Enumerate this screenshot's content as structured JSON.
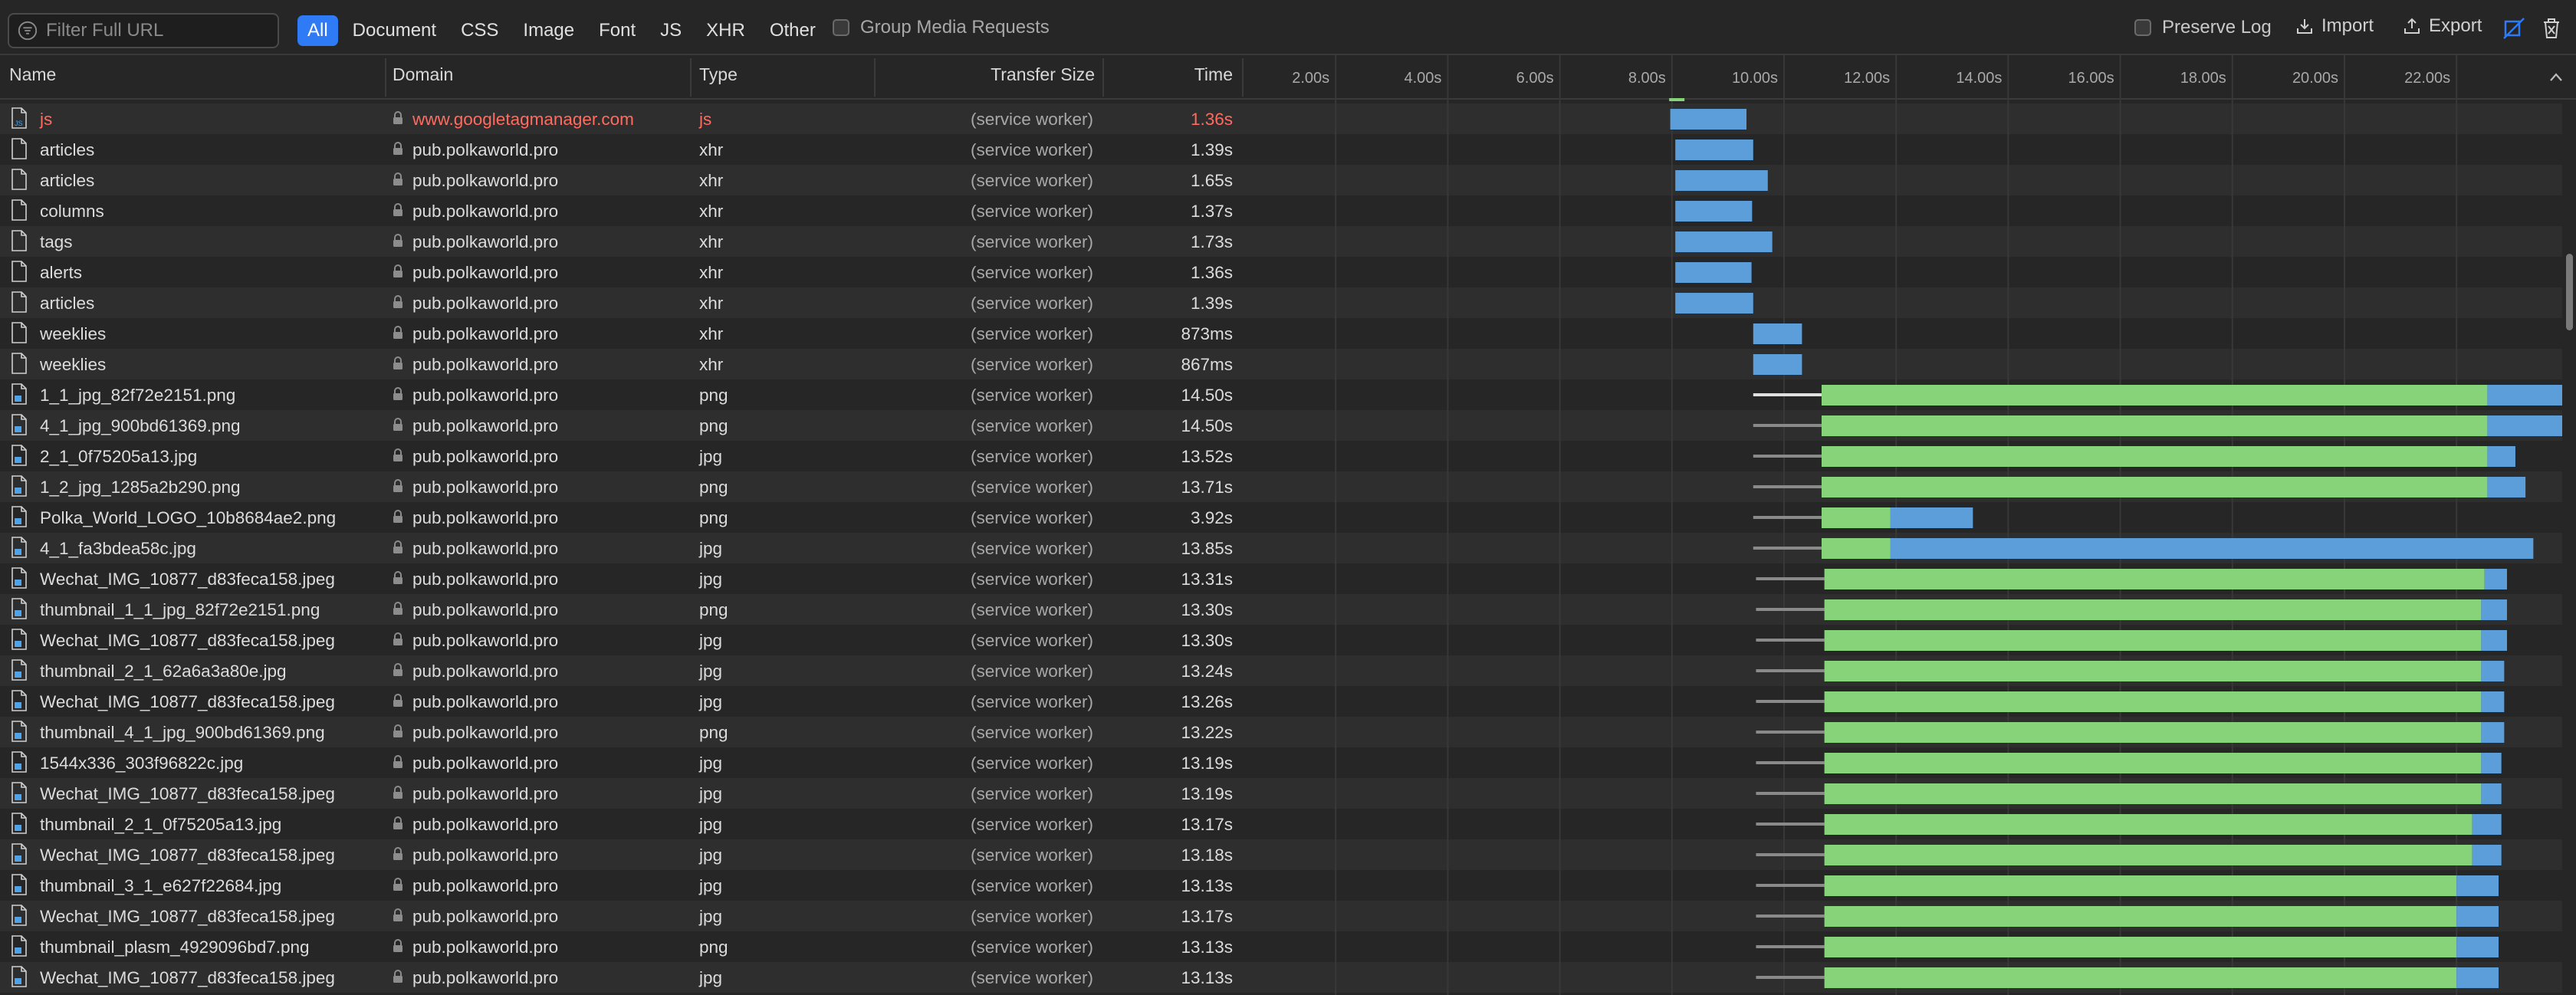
{
  "toolbar": {
    "filter_placeholder": "Filter Full URL",
    "types": [
      "All",
      "Document",
      "CSS",
      "Image",
      "Font",
      "JS",
      "XHR",
      "Other"
    ],
    "active_type": "All",
    "group_media": "Group Media Requests",
    "preserve_log": "Preserve Log",
    "import": "Import",
    "export": "Export",
    "accent": "#2f7bf5"
  },
  "columns": {
    "name": "Name",
    "domain": "Domain",
    "type": "Type",
    "transfer": "Transfer Size",
    "time": "Time"
  },
  "timeline_ticks": [
    "2.00s",
    "4.00s",
    "6.00s",
    "8.00s",
    "10.00s",
    "12.00s",
    "14.00s",
    "16.00s",
    "18.00s",
    "20.00s",
    "22.00s"
  ],
  "requests": [
    {
      "name": "js",
      "domain": "www.googletagmanager.com",
      "type": "js",
      "transfer": "(service worker)",
      "time": "1.36s",
      "error": true,
      "icon": "script-file-icon",
      "gray_start": null,
      "green_start": null,
      "blue_start": 7.97,
      "end": 9.33
    },
    {
      "name": "articles",
      "domain": "pub.polkaworld.pro",
      "type": "xhr",
      "transfer": "(service worker)",
      "time": "1.39s",
      "icon": "document-file-icon",
      "blue_start": 8.06,
      "end": 9.45
    },
    {
      "name": "articles",
      "domain": "pub.polkaworld.pro",
      "type": "xhr",
      "transfer": "(service worker)",
      "time": "1.65s",
      "icon": "document-file-icon",
      "blue_start": 8.06,
      "end": 9.71
    },
    {
      "name": "columns",
      "domain": "pub.polkaworld.pro",
      "type": "xhr",
      "transfer": "(service worker)",
      "time": "1.37s",
      "icon": "document-file-icon",
      "blue_start": 8.06,
      "end": 9.43
    },
    {
      "name": "tags",
      "domain": "pub.polkaworld.pro",
      "type": "xhr",
      "transfer": "(service worker)",
      "time": "1.73s",
      "icon": "document-file-icon",
      "blue_start": 8.06,
      "end": 9.79
    },
    {
      "name": "alerts",
      "domain": "pub.polkaworld.pro",
      "type": "xhr",
      "transfer": "(service worker)",
      "time": "1.36s",
      "icon": "document-file-icon",
      "blue_start": 8.06,
      "end": 9.42
    },
    {
      "name": "articles",
      "domain": "pub.polkaworld.pro",
      "type": "xhr",
      "transfer": "(service worker)",
      "time": "1.39s",
      "icon": "document-file-icon",
      "blue_start": 8.06,
      "end": 9.45
    },
    {
      "name": "weeklies",
      "domain": "pub.polkaworld.pro",
      "type": "xhr",
      "transfer": "(service worker)",
      "time": "873ms",
      "icon": "document-file-icon",
      "blue_start": 9.45,
      "end": 10.32
    },
    {
      "name": "weeklies",
      "domain": "pub.polkaworld.pro",
      "type": "xhr",
      "transfer": "(service worker)",
      "time": "867ms",
      "icon": "document-file-icon",
      "blue_start": 9.45,
      "end": 10.32
    },
    {
      "name": "1_1_jpg_82f72e2151.png",
      "domain": "pub.polkaworld.pro",
      "type": "png",
      "transfer": "(service worker)",
      "time": "14.50s",
      "icon": "image-file-icon",
      "gray_start": 9.45,
      "green_start": 10.67,
      "blue_start": 22.55,
      "end": 23.95
    },
    {
      "name": "4_1_jpg_900bd61369.png",
      "domain": "pub.polkaworld.pro",
      "type": "png",
      "transfer": "(service worker)",
      "time": "14.50s",
      "icon": "image-file-icon",
      "gray_start": 9.45,
      "green_start": 10.67,
      "blue_start": 22.55,
      "end": 23.95
    },
    {
      "name": "2_1_0f75205a13.jpg",
      "domain": "pub.polkaworld.pro",
      "type": "jpg",
      "transfer": "(service worker)",
      "time": "13.52s",
      "icon": "image-file-icon",
      "gray_start": 9.45,
      "green_start": 10.67,
      "blue_start": 22.55,
      "end": 23.05
    },
    {
      "name": "1_2_jpg_1285a2b290.png",
      "domain": "pub.polkaworld.pro",
      "type": "png",
      "transfer": "(service worker)",
      "time": "13.71s",
      "icon": "image-file-icon",
      "gray_start": 9.45,
      "green_start": 10.67,
      "blue_start": 22.55,
      "end": 23.23
    },
    {
      "name": "Polka_World_LOGO_10b8684ae2.png",
      "domain": "pub.polkaworld.pro",
      "type": "png",
      "transfer": "(service worker)",
      "time": "3.92s",
      "icon": "image-file-icon",
      "gray_start": 9.45,
      "green_start": 10.67,
      "blue_start": 11.9,
      "end": 13.37
    },
    {
      "name": "4_1_fa3bdea58c.jpg",
      "domain": "pub.polkaworld.pro",
      "type": "jpg",
      "transfer": "(service worker)",
      "time": "13.85s",
      "icon": "image-file-icon",
      "gray_start": 9.45,
      "green_start": 10.67,
      "blue_start": 11.9,
      "end": 23.37
    },
    {
      "name": "Wechat_IMG_10877_d83feca158.jpeg",
      "domain": "pub.polkaworld.pro",
      "type": "jpg",
      "transfer": "(service worker)",
      "time": "13.31s",
      "icon": "image-file-icon",
      "gray_start": 9.5,
      "green_start": 10.72,
      "blue_start": 22.5,
      "end": 22.9
    },
    {
      "name": "thumbnail_1_1_jpg_82f72e2151.png",
      "domain": "pub.polkaworld.pro",
      "type": "png",
      "transfer": "(service worker)",
      "time": "13.30s",
      "icon": "image-file-icon",
      "gray_start": 9.5,
      "green_start": 10.72,
      "blue_start": 22.44,
      "end": 22.9
    },
    {
      "name": "Wechat_IMG_10877_d83feca158.jpeg",
      "domain": "pub.polkaworld.pro",
      "type": "jpg",
      "transfer": "(service worker)",
      "time": "13.30s",
      "icon": "image-file-icon",
      "gray_start": 9.5,
      "green_start": 10.72,
      "blue_start": 22.44,
      "end": 22.9
    },
    {
      "name": "thumbnail_2_1_62a6a3a80e.jpg",
      "domain": "pub.polkaworld.pro",
      "type": "jpg",
      "transfer": "(service worker)",
      "time": "13.24s",
      "icon": "image-file-icon",
      "gray_start": 9.5,
      "green_start": 10.72,
      "blue_start": 22.44,
      "end": 22.85
    },
    {
      "name": "Wechat_IMG_10877_d83feca158.jpeg",
      "domain": "pub.polkaworld.pro",
      "type": "jpg",
      "transfer": "(service worker)",
      "time": "13.26s",
      "icon": "image-file-icon",
      "gray_start": 9.5,
      "green_start": 10.72,
      "blue_start": 22.44,
      "end": 22.85
    },
    {
      "name": "thumbnail_4_1_jpg_900bd61369.png",
      "domain": "pub.polkaworld.pro",
      "type": "png",
      "transfer": "(service worker)",
      "time": "13.22s",
      "icon": "image-file-icon",
      "gray_start": 9.5,
      "green_start": 10.72,
      "blue_start": 22.44,
      "end": 22.85
    },
    {
      "name": "1544x336_303f96822c.jpg",
      "domain": "pub.polkaworld.pro",
      "type": "jpg",
      "transfer": "(service worker)",
      "time": "13.19s",
      "icon": "image-file-icon",
      "gray_start": 9.5,
      "green_start": 10.72,
      "blue_start": 22.44,
      "end": 22.8
    },
    {
      "name": "Wechat_IMG_10877_d83feca158.jpeg",
      "domain": "pub.polkaworld.pro",
      "type": "jpg",
      "transfer": "(service worker)",
      "time": "13.19s",
      "icon": "image-file-icon",
      "gray_start": 9.5,
      "green_start": 10.72,
      "blue_start": 22.44,
      "end": 22.8
    },
    {
      "name": "thumbnail_2_1_0f75205a13.jpg",
      "domain": "pub.polkaworld.pro",
      "type": "jpg",
      "transfer": "(service worker)",
      "time": "13.17s",
      "icon": "image-file-icon",
      "gray_start": 9.5,
      "green_start": 10.72,
      "blue_start": 22.28,
      "end": 22.8
    },
    {
      "name": "Wechat_IMG_10877_d83feca158.jpeg",
      "domain": "pub.polkaworld.pro",
      "type": "jpg",
      "transfer": "(service worker)",
      "time": "13.18s",
      "icon": "image-file-icon",
      "gray_start": 9.5,
      "green_start": 10.72,
      "blue_start": 22.28,
      "end": 22.8
    },
    {
      "name": "thumbnail_3_1_e627f22684.jpg",
      "domain": "pub.polkaworld.pro",
      "type": "jpg",
      "transfer": "(service worker)",
      "time": "13.13s",
      "icon": "image-file-icon",
      "gray_start": 9.5,
      "green_start": 10.72,
      "blue_start": 22.0,
      "end": 22.75
    },
    {
      "name": "Wechat_IMG_10877_d83feca158.jpeg",
      "domain": "pub.polkaworld.pro",
      "type": "jpg",
      "transfer": "(service worker)",
      "time": "13.17s",
      "icon": "image-file-icon",
      "gray_start": 9.5,
      "green_start": 10.72,
      "blue_start": 22.0,
      "end": 22.75
    },
    {
      "name": "thumbnail_plasm_4929096bd7.png",
      "domain": "pub.polkaworld.pro",
      "type": "png",
      "transfer": "(service worker)",
      "time": "13.13s",
      "icon": "image-file-icon",
      "gray_start": 9.5,
      "green_start": 10.72,
      "blue_start": 22.0,
      "end": 22.75
    },
    {
      "name": "Wechat_IMG_10877_d83feca158.jpeg",
      "domain": "pub.polkaworld.pro",
      "type": "jpg",
      "transfer": "(service worker)",
      "time": "13.13s",
      "icon": "image-file-icon",
      "gray_start": 9.5,
      "green_start": 10.72,
      "blue_start": 22.0,
      "end": 22.75
    }
  ]
}
